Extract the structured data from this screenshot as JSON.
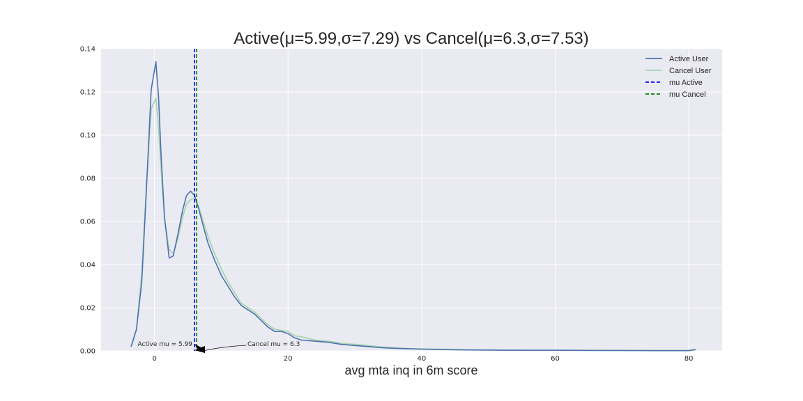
{
  "chart_data": {
    "type": "line",
    "title": "Active(μ=5.99,σ=7.29) vs Cancel(μ=6.3,σ=7.53)",
    "xlabel": "avg mta inq in 6m score",
    "ylabel": "",
    "xlim": [
      -8,
      85
    ],
    "ylim": [
      0,
      0.14
    ],
    "xticks": [
      0,
      20,
      40,
      60,
      80
    ],
    "yticks": [
      0.0,
      0.02,
      0.04,
      0.06,
      0.08,
      0.1,
      0.12,
      0.14
    ],
    "xtick_labels": [
      "0",
      "20",
      "40",
      "60",
      "80"
    ],
    "ytick_labels": [
      "0.00",
      "0.02",
      "0.04",
      "0.06",
      "0.08",
      "0.10",
      "0.12",
      "0.14"
    ],
    "grid": true,
    "legend_position": "top-right",
    "series": [
      {
        "name": "Active User",
        "color": "#4c72b0",
        "style": "solid",
        "x": [
          -3.5,
          -2.7,
          -1.9,
          -1.2,
          -0.5,
          0.2,
          0.6,
          1.0,
          1.5,
          2.2,
          2.8,
          3.5,
          4.2,
          4.8,
          5.4,
          6.0,
          6.6,
          7.2,
          8.0,
          9.0,
          10.0,
          11.0,
          12.0,
          13.0,
          14.0,
          15.0,
          16.0,
          17.0,
          18.0,
          19.0,
          20.0,
          21.0,
          22.0,
          24.0,
          26.0,
          28.0,
          30.0,
          32.0,
          34.0,
          36.0,
          38.0,
          40.0,
          42.0,
          45.0,
          48.0,
          52.0,
          56.0,
          60.0,
          65.0,
          70.0,
          75.0,
          80.0,
          81.0
        ],
        "y": [
          0.002,
          0.01,
          0.032,
          0.075,
          0.121,
          0.134,
          0.118,
          0.09,
          0.062,
          0.043,
          0.044,
          0.054,
          0.065,
          0.072,
          0.074,
          0.072,
          0.066,
          0.059,
          0.05,
          0.042,
          0.035,
          0.03,
          0.025,
          0.021,
          0.019,
          0.017,
          0.014,
          0.011,
          0.009,
          0.009,
          0.008,
          0.006,
          0.005,
          0.0045,
          0.004,
          0.003,
          0.0025,
          0.002,
          0.0015,
          0.0012,
          0.001,
          0.0008,
          0.0007,
          0.0005,
          0.0004,
          0.0003,
          0.0003,
          0.0003,
          0.0002,
          0.0002,
          0.0001,
          0.0001,
          0.0006
        ]
      },
      {
        "name": "Cancel User",
        "color": "#a8d5b0",
        "style": "solid",
        "x": [
          -3.5,
          -2.7,
          -1.9,
          -1.2,
          -0.5,
          0.2,
          0.6,
          1.0,
          1.5,
          2.2,
          2.8,
          3.5,
          4.2,
          4.8,
          5.4,
          6.0,
          6.6,
          7.2,
          8.0,
          9.0,
          10.0,
          11.0,
          12.0,
          13.0,
          14.0,
          15.0,
          16.0,
          17.0,
          18.0,
          19.0,
          20.0,
          21.0,
          22.0,
          24.0,
          26.0,
          28.0,
          30.0,
          32.0,
          34.0,
          36.0,
          38.0,
          40.0,
          42.0,
          45.0,
          48.0,
          52.0,
          56.0,
          60.0,
          65.0,
          70.0,
          75.0,
          80.0,
          81.0
        ],
        "y": [
          0.002,
          0.01,
          0.036,
          0.077,
          0.112,
          0.117,
          0.104,
          0.084,
          0.061,
          0.047,
          0.045,
          0.052,
          0.062,
          0.068,
          0.07,
          0.071,
          0.067,
          0.061,
          0.053,
          0.045,
          0.038,
          0.032,
          0.027,
          0.022,
          0.02,
          0.018,
          0.015,
          0.012,
          0.01,
          0.0095,
          0.009,
          0.007,
          0.0065,
          0.005,
          0.0045,
          0.0035,
          0.003,
          0.0025,
          0.0018,
          0.0014,
          0.0011,
          0.0009,
          0.0008,
          0.0006,
          0.0005,
          0.0004,
          0.0003,
          0.0003,
          0.0003,
          0.0002,
          0.0002,
          0.0002,
          0.0004
        ]
      }
    ],
    "vlines": [
      {
        "name": "mu Active",
        "x": 5.99,
        "color": "#0000ff",
        "style": "dashed"
      },
      {
        "name": "mu Cancel",
        "x": 6.3,
        "color": "#008000",
        "style": "dashed"
      }
    ],
    "annotations": [
      {
        "text": "Active mu = 5.99",
        "x": 5.99,
        "y": 0.0
      },
      {
        "text": "Cancel mu = 6.3",
        "x": 6.3,
        "y": 0.0
      }
    ]
  }
}
